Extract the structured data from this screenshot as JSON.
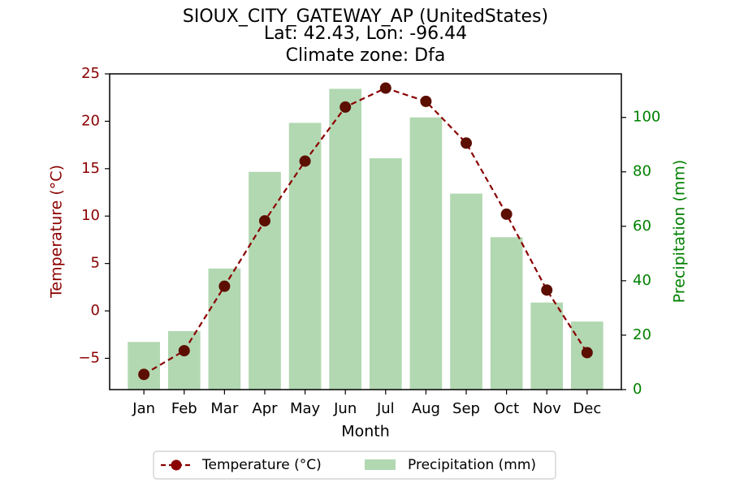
{
  "chart_data": {
    "type": "bar+line",
    "title_lines": [
      "SIOUX_CITY_GATEWAY_AP (UnitedStates)",
      "Lat: 42.43, Lon: -96.44",
      "Climate zone: Dfa"
    ],
    "xlabel": "Month",
    "ylabel_left": "Temperature (°C)",
    "ylabel_right": "Precipitation (mm)",
    "categories": [
      "Jan",
      "Feb",
      "Mar",
      "Apr",
      "May",
      "Jun",
      "Jul",
      "Aug",
      "Sep",
      "Oct",
      "Nov",
      "Dec"
    ],
    "ylim_left": [
      -8.3,
      25
    ],
    "ylim_right": [
      0,
      116
    ],
    "yticks_left": [
      -5,
      0,
      5,
      10,
      15,
      20,
      25
    ],
    "yticks_left_labels": [
      "−5",
      "0",
      "5",
      "10",
      "15",
      "20",
      "25"
    ],
    "yticks_right": [
      0,
      20,
      40,
      60,
      80,
      100
    ],
    "series": [
      {
        "name": "Temperature (°C)",
        "kind": "line",
        "axis": "left",
        "color": "#8b0000",
        "values": [
          -6.7,
          -4.2,
          2.6,
          9.5,
          15.8,
          21.5,
          23.5,
          22.1,
          17.7,
          10.2,
          2.2,
          -4.4
        ]
      },
      {
        "name": "Precipitation (mm)",
        "kind": "bar",
        "axis": "right",
        "color": "#b2d8b2",
        "values": [
          17.5,
          21.5,
          44.5,
          80,
          98,
          110.5,
          85,
          100,
          72,
          56,
          32,
          25
        ]
      }
    ],
    "legend_position": "bottom-center",
    "colors": {
      "left_axis": "#8b0000",
      "right_axis": "#008000"
    }
  }
}
